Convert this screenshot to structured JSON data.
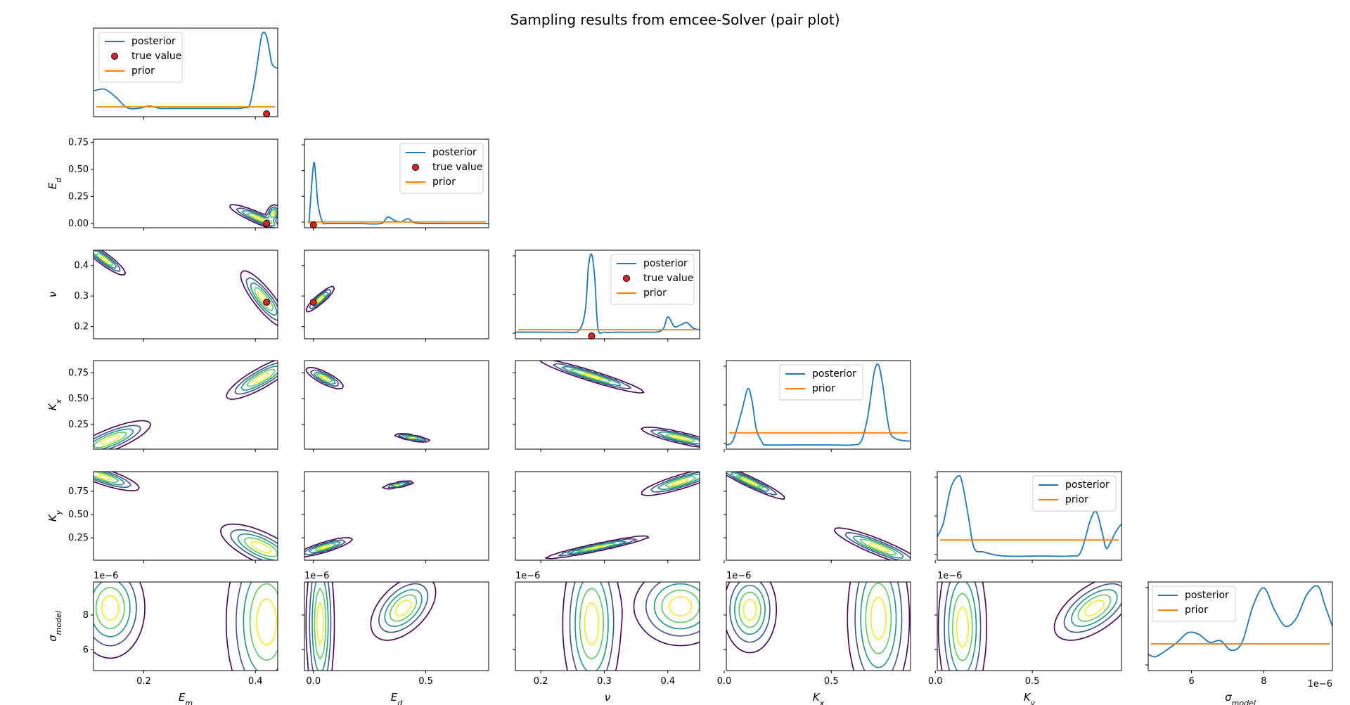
{
  "title": "Sampling results from emcee-Solver (pair plot)",
  "colors": {
    "posterior": "#1f77b4",
    "prior": "#ff7f0e",
    "true_value": "#d62728",
    "contour_levels": [
      "#440154",
      "#3b528b",
      "#21918c",
      "#5ec962",
      "#fde725"
    ]
  },
  "legend_labels": {
    "posterior": "posterior",
    "true_value": "true value",
    "prior": "prior"
  },
  "axis_labels": {
    "Em": "E_m",
    "Ed": "E_d",
    "nu": "ν",
    "Kx": "K_x",
    "Ky": "K_y",
    "sigma": "σ_model"
  },
  "offset_text": "1e−6",
  "chart_data": {
    "type": "pair-plot",
    "title": "Sampling results from emcee-Solver (pair plot)",
    "parameters": [
      "Em",
      "Ed",
      "nu",
      "Kx",
      "Ky",
      "sigma"
    ],
    "ranges": {
      "Em": [
        0.11,
        0.44
      ],
      "Ed": [
        -0.04,
        0.78
      ],
      "nu": [
        0.16,
        0.45
      ],
      "Kx": [
        0.01,
        0.87
      ],
      "Ky": [
        0.01,
        0.96
      ],
      "sigma": [
        4.8e-06,
        9.9e-06
      ]
    },
    "ticks": {
      "Em": [
        0.2,
        0.4
      ],
      "Ed_x": [
        0.0,
        0.5
      ],
      "Ed_y": [
        0.0,
        0.25,
        0.5,
        0.75
      ],
      "nu": [
        0.2,
        0.3,
        0.4
      ],
      "Kx_x": [
        0.0,
        0.5
      ],
      "Kx_y": [
        0.25,
        0.5,
        0.75
      ],
      "Ky_x": [
        0.0,
        0.5
      ],
      "Ky_y": [
        0.25,
        0.5,
        0.75
      ],
      "sigma": [
        6e-06,
        8e-06
      ]
    },
    "tick_labels": {
      "Em": [
        "0.2",
        "0.4"
      ],
      "Ed_x": [
        "0.0",
        "0.5"
      ],
      "Ed_y": [
        "0.00",
        "0.25",
        "0.50",
        "0.75"
      ],
      "nu": [
        "0.2",
        "0.3",
        "0.4"
      ],
      "Kx_x": [
        "0.0",
        "0.5"
      ],
      "Kx_y": [
        "0.25",
        "0.50",
        "0.75"
      ],
      "Ky_x": [
        "0.0",
        "0.5"
      ],
      "Ky_y": [
        "0.25",
        "0.50",
        "0.75"
      ],
      "sigma_y": [
        "6",
        "8"
      ],
      "sigma_x": [
        "6",
        "8"
      ]
    },
    "true_values": {
      "Em": 0.42,
      "Ed": 0.0,
      "nu": 0.28
    },
    "marginals": {
      "Em": {
        "x": [
          0.11,
          0.13,
          0.15,
          0.17,
          0.19,
          0.21,
          0.23,
          0.25,
          0.27,
          0.29,
          0.31,
          0.33,
          0.35,
          0.37,
          0.38,
          0.39,
          0.4,
          0.41,
          0.415,
          0.42,
          0.425,
          0.43,
          0.44
        ],
        "posterior": [
          0.27,
          0.29,
          0.19,
          0.06,
          0.05,
          0.08,
          0.05,
          0.05,
          0.05,
          0.05,
          0.05,
          0.05,
          0.05,
          0.05,
          0.06,
          0.1,
          0.45,
          0.92,
          1.0,
          0.95,
          0.78,
          0.6,
          0.55
        ],
        "prior": 0.07
      },
      "Ed": {
        "x": [
          -0.02,
          0.0,
          0.01,
          0.02,
          0.04,
          0.06,
          0.1,
          0.2,
          0.3,
          0.33,
          0.36,
          0.39,
          0.42,
          0.45,
          0.5,
          0.6,
          0.78
        ],
        "posterior": [
          0.0,
          0.73,
          0.6,
          0.25,
          0.02,
          0.0,
          0.0,
          0.0,
          0.0,
          0.08,
          0.04,
          0.02,
          0.06,
          0.01,
          0.0,
          0.0,
          0.0
        ],
        "prior": 0.02
      },
      "nu": {
        "x": [
          0.16,
          0.2,
          0.24,
          0.26,
          0.27,
          0.275,
          0.28,
          0.285,
          0.29,
          0.3,
          0.32,
          0.36,
          0.39,
          0.4,
          0.41,
          0.42,
          0.43,
          0.44,
          0.45
        ],
        "posterior": [
          0.03,
          0.03,
          0.03,
          0.05,
          0.3,
          0.85,
          1.0,
          0.7,
          0.08,
          0.03,
          0.03,
          0.03,
          0.05,
          0.22,
          0.1,
          0.12,
          0.15,
          0.08,
          0.06
        ],
        "prior": 0.06
      },
      "Kx": {
        "x": [
          0.0,
          0.04,
          0.08,
          0.11,
          0.13,
          0.15,
          0.18,
          0.2,
          0.3,
          0.5,
          0.6,
          0.64,
          0.67,
          0.7,
          0.72,
          0.74,
          0.77,
          0.8,
          0.85,
          0.87
        ],
        "posterior": [
          0.0,
          0.05,
          0.4,
          0.7,
          0.55,
          0.2,
          0.02,
          0.0,
          0.0,
          0.0,
          0.0,
          0.05,
          0.35,
          0.9,
          1.0,
          0.75,
          0.2,
          0.08,
          0.05,
          0.05
        ],
        "prior": 0.15
      },
      "Ky": {
        "x": [
          0.0,
          0.04,
          0.08,
          0.12,
          0.14,
          0.17,
          0.2,
          0.25,
          0.35,
          0.55,
          0.7,
          0.75,
          0.8,
          0.83,
          0.86,
          0.88,
          0.9,
          0.93,
          0.96
        ],
        "posterior": [
          0.2,
          0.4,
          0.85,
          1.0,
          0.9,
          0.5,
          0.1,
          0.05,
          0.0,
          0.0,
          0.0,
          0.05,
          0.45,
          0.55,
          0.3,
          0.1,
          0.15,
          0.3,
          0.4
        ],
        "prior": 0.2
      },
      "sigma": {
        "x": [
          4.8e-06,
          5e-06,
          5.3e-06,
          5.6e-06,
          5.9e-06,
          6.2e-06,
          6.5e-06,
          6.8e-06,
          7.1e-06,
          7.4e-06,
          7.7e-06,
          8e-06,
          8.3e-06,
          8.6e-06,
          8.9e-06,
          9.2e-06,
          9.5e-06,
          9.7e-06,
          9.9e-06
        ],
        "posterior": [
          0.15,
          0.12,
          0.2,
          0.3,
          0.42,
          0.4,
          0.3,
          0.32,
          0.2,
          0.3,
          0.75,
          0.98,
          0.7,
          0.5,
          0.6,
          0.9,
          1.0,
          0.75,
          0.5
        ],
        "prior": 0.28
      }
    },
    "joint_modes": [
      {
        "x": "Em",
        "y": "Ed",
        "modes": [
          {
            "cx": 0.405,
            "cy": 0.05,
            "sx": 0.025,
            "sy": 0.06,
            "rho": -0.9
          },
          {
            "cx": 0.432,
            "cy": 0.09,
            "sx": 0.006,
            "sy": 0.04,
            "rho": 0.2
          }
        ]
      },
      {
        "x": "Em",
        "y": "nu",
        "modes": [
          {
            "cx": 0.13,
            "cy": 0.42,
            "sx": 0.018,
            "sy": 0.025,
            "rho": -0.9
          },
          {
            "cx": 0.415,
            "cy": 0.29,
            "sx": 0.02,
            "sy": 0.045,
            "rho": -0.85
          }
        ]
      },
      {
        "x": "Em",
        "y": "Kx",
        "modes": [
          {
            "cx": 0.41,
            "cy": 0.7,
            "sx": 0.03,
            "sy": 0.1,
            "rho": 0.85
          },
          {
            "cx": 0.14,
            "cy": 0.1,
            "sx": 0.035,
            "sy": 0.09,
            "rho": 0.8
          }
        ]
      },
      {
        "x": "Em",
        "y": "Ky",
        "modes": [
          {
            "cx": 0.13,
            "cy": 0.9,
            "sx": 0.03,
            "sy": 0.07,
            "rho": -0.8
          },
          {
            "cx": 0.41,
            "cy": 0.15,
            "sx": 0.035,
            "sy": 0.12,
            "rho": -0.7
          }
        ]
      },
      {
        "x": "Em",
        "y": "sigma",
        "modes": [
          {
            "cx": 0.14,
            "cy": 8.4e-06,
            "sx": 0.03,
            "sy": 1.4e-06,
            "rho": 0.0
          },
          {
            "cx": 0.42,
            "cy": 7.6e-06,
            "sx": 0.035,
            "sy": 2.6e-06,
            "rho": 0.0
          }
        ]
      },
      {
        "x": "Ed",
        "y": "nu",
        "modes": [
          {
            "cx": 0.03,
            "cy": 0.29,
            "sx": 0.03,
            "sy": 0.02,
            "rho": 0.9
          }
        ]
      },
      {
        "x": "Ed",
        "y": "Kx",
        "modes": [
          {
            "cx": 0.05,
            "cy": 0.7,
            "sx": 0.04,
            "sy": 0.05,
            "rho": -0.8
          },
          {
            "cx": 0.44,
            "cy": 0.12,
            "sx": 0.04,
            "sy": 0.02,
            "rho": -0.8
          }
        ]
      },
      {
        "x": "Ed",
        "y": "Ky",
        "modes": [
          {
            "cx": 0.05,
            "cy": 0.15,
            "sx": 0.06,
            "sy": 0.05,
            "rho": 0.85
          },
          {
            "cx": 0.38,
            "cy": 0.82,
            "sx": 0.035,
            "sy": 0.02,
            "rho": 0.8
          }
        ]
      },
      {
        "x": "Ed",
        "y": "sigma",
        "modes": [
          {
            "cx": 0.03,
            "cy": 7.5e-06,
            "sx": 0.03,
            "sy": 2.4e-06,
            "rho": 0.0
          },
          {
            "cx": 0.4,
            "cy": 8.4e-06,
            "sx": 0.07,
            "sy": 9e-07,
            "rho": 0.5
          }
        ]
      },
      {
        "x": "nu",
        "y": "Kx",
        "modes": [
          {
            "cx": 0.28,
            "cy": 0.72,
            "sx": 0.04,
            "sy": 0.08,
            "rho": -0.95
          },
          {
            "cx": 0.42,
            "cy": 0.12,
            "sx": 0.03,
            "sy": 0.05,
            "rho": -0.85
          }
        ]
      },
      {
        "x": "nu",
        "y": "Ky",
        "modes": [
          {
            "cx": 0.29,
            "cy": 0.15,
            "sx": 0.04,
            "sy": 0.06,
            "rho": 0.95
          },
          {
            "cx": 0.42,
            "cy": 0.85,
            "sx": 0.03,
            "sy": 0.07,
            "rho": 0.85
          }
        ]
      },
      {
        "x": "nu",
        "y": "sigma",
        "modes": [
          {
            "cx": 0.28,
            "cy": 7.5e-06,
            "sx": 0.022,
            "sy": 2.4e-06,
            "rho": 0.0
          },
          {
            "cx": 0.42,
            "cy": 8.5e-06,
            "sx": 0.035,
            "sy": 1.1e-06,
            "rho": 0.0
          }
        ]
      },
      {
        "x": "Kx",
        "y": "Ky",
        "modes": [
          {
            "cx": 0.12,
            "cy": 0.85,
            "sx": 0.08,
            "sy": 0.09,
            "rho": -0.95
          },
          {
            "cx": 0.72,
            "cy": 0.15,
            "sx": 0.1,
            "sy": 0.1,
            "rho": -0.9
          }
        ]
      },
      {
        "x": "Kx",
        "y": "sigma",
        "modes": [
          {
            "cx": 0.12,
            "cy": 8.3e-06,
            "sx": 0.06,
            "sy": 1.2e-06,
            "rho": 0.0
          },
          {
            "cx": 0.72,
            "cy": 7.8e-06,
            "sx": 0.07,
            "sy": 2.4e-06,
            "rho": 0.0
          }
        ]
      },
      {
        "x": "Ky",
        "y": "sigma",
        "modes": [
          {
            "cx": 0.14,
            "cy": 7.3e-06,
            "sx": 0.06,
            "sy": 2.3e-06,
            "rho": 0.0
          },
          {
            "cx": 0.82,
            "cy": 8.4e-06,
            "sx": 0.1,
            "sy": 9e-07,
            "rho": 0.6
          }
        ]
      }
    ]
  }
}
